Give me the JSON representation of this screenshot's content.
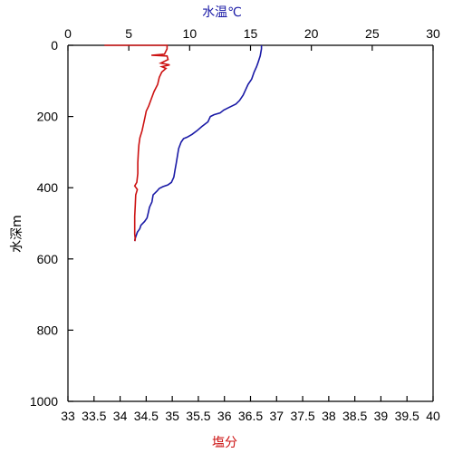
{
  "chart_data": {
    "type": "line",
    "orientation": "profile",
    "top_axis": {
      "label": "水温℃",
      "range": [
        0,
        30
      ],
      "ticks": [
        0,
        5,
        10,
        15,
        20,
        25,
        30
      ],
      "tick_labels": [
        "0",
        "5",
        "10",
        "15",
        "20",
        "25",
        "30"
      ]
    },
    "bottom_axis": {
      "label": "塩分",
      "range": [
        33,
        40
      ],
      "ticks": [
        33,
        33.5,
        34,
        34.5,
        35,
        35.5,
        36,
        36.5,
        37,
        37.5,
        38,
        38.5,
        39,
        39.5,
        40
      ],
      "tick_labels": [
        "33",
        "33.5",
        "34",
        "34.5",
        "35",
        "35.5",
        "36",
        "36.5",
        "37",
        "37.5",
        "38",
        "38.5",
        "39",
        "39.5",
        "40"
      ]
    },
    "y_axis": {
      "label": "水深m",
      "range": [
        0,
        1000
      ],
      "inverted": true,
      "ticks": [
        0,
        200,
        400,
        600,
        800,
        1000
      ],
      "tick_labels": [
        "0",
        "200",
        "400",
        "600",
        "800",
        "1000"
      ]
    },
    "grid": false,
    "series": [
      {
        "axis": "top",
        "color": "#1a1aa6",
        "points": [
          [
            15.9,
            0
          ],
          [
            15.9,
            10
          ],
          [
            15.8,
            30
          ],
          [
            15.6,
            50
          ],
          [
            15.5,
            60
          ],
          [
            15.3,
            75
          ],
          [
            15.1,
            95
          ],
          [
            14.8,
            110
          ],
          [
            14.6,
            125
          ],
          [
            14.4,
            140
          ],
          [
            14.1,
            155
          ],
          [
            13.8,
            165
          ],
          [
            13.5,
            170
          ],
          [
            13.2,
            175
          ],
          [
            12.8,
            182
          ],
          [
            12.5,
            190
          ],
          [
            12.0,
            195
          ],
          [
            11.7,
            200
          ],
          [
            11.5,
            215
          ],
          [
            11.0,
            228
          ],
          [
            10.6,
            240
          ],
          [
            10.2,
            250
          ],
          [
            9.8,
            258
          ],
          [
            9.5,
            262
          ],
          [
            9.3,
            272
          ],
          [
            9.1,
            290
          ],
          [
            9.0,
            310
          ],
          [
            8.9,
            330
          ],
          [
            8.8,
            350
          ],
          [
            8.7,
            370
          ],
          [
            8.5,
            385
          ],
          [
            8.2,
            392
          ],
          [
            7.8,
            397
          ],
          [
            7.5,
            402
          ],
          [
            7.3,
            410
          ],
          [
            7.0,
            420
          ],
          [
            6.9,
            440
          ],
          [
            6.7,
            455
          ],
          [
            6.6,
            470
          ],
          [
            6.5,
            485
          ],
          [
            6.3,
            495
          ],
          [
            6.0,
            505
          ],
          [
            5.9,
            515
          ],
          [
            5.7,
            525
          ],
          [
            5.6,
            535
          ],
          [
            5.5,
            545
          ],
          [
            5.5,
            550
          ]
        ]
      },
      {
        "axis": "bottom",
        "color": "#cc1111",
        "points": [
          [
            33.7,
            0
          ],
          [
            34.9,
            0
          ],
          [
            34.9,
            10
          ],
          [
            34.85,
            25
          ],
          [
            34.6,
            28
          ],
          [
            34.9,
            30
          ],
          [
            34.92,
            40
          ],
          [
            34.78,
            50
          ],
          [
            34.95,
            55
          ],
          [
            34.8,
            60
          ],
          [
            34.88,
            65
          ],
          [
            34.8,
            75
          ],
          [
            34.75,
            90
          ],
          [
            34.72,
            110
          ],
          [
            34.65,
            130
          ],
          [
            34.6,
            150
          ],
          [
            34.55,
            170
          ],
          [
            34.5,
            185
          ],
          [
            34.48,
            200
          ],
          [
            34.45,
            220
          ],
          [
            34.42,
            240
          ],
          [
            34.38,
            260
          ],
          [
            34.36,
            280
          ],
          [
            34.35,
            300
          ],
          [
            34.34,
            330
          ],
          [
            34.34,
            360
          ],
          [
            34.32,
            385
          ],
          [
            34.28,
            395
          ],
          [
            34.33,
            405
          ],
          [
            34.3,
            420
          ],
          [
            34.29,
            450
          ],
          [
            34.28,
            480
          ],
          [
            34.28,
            510
          ],
          [
            34.28,
            530
          ],
          [
            34.29,
            545
          ],
          [
            34.28,
            550
          ]
        ]
      }
    ]
  }
}
